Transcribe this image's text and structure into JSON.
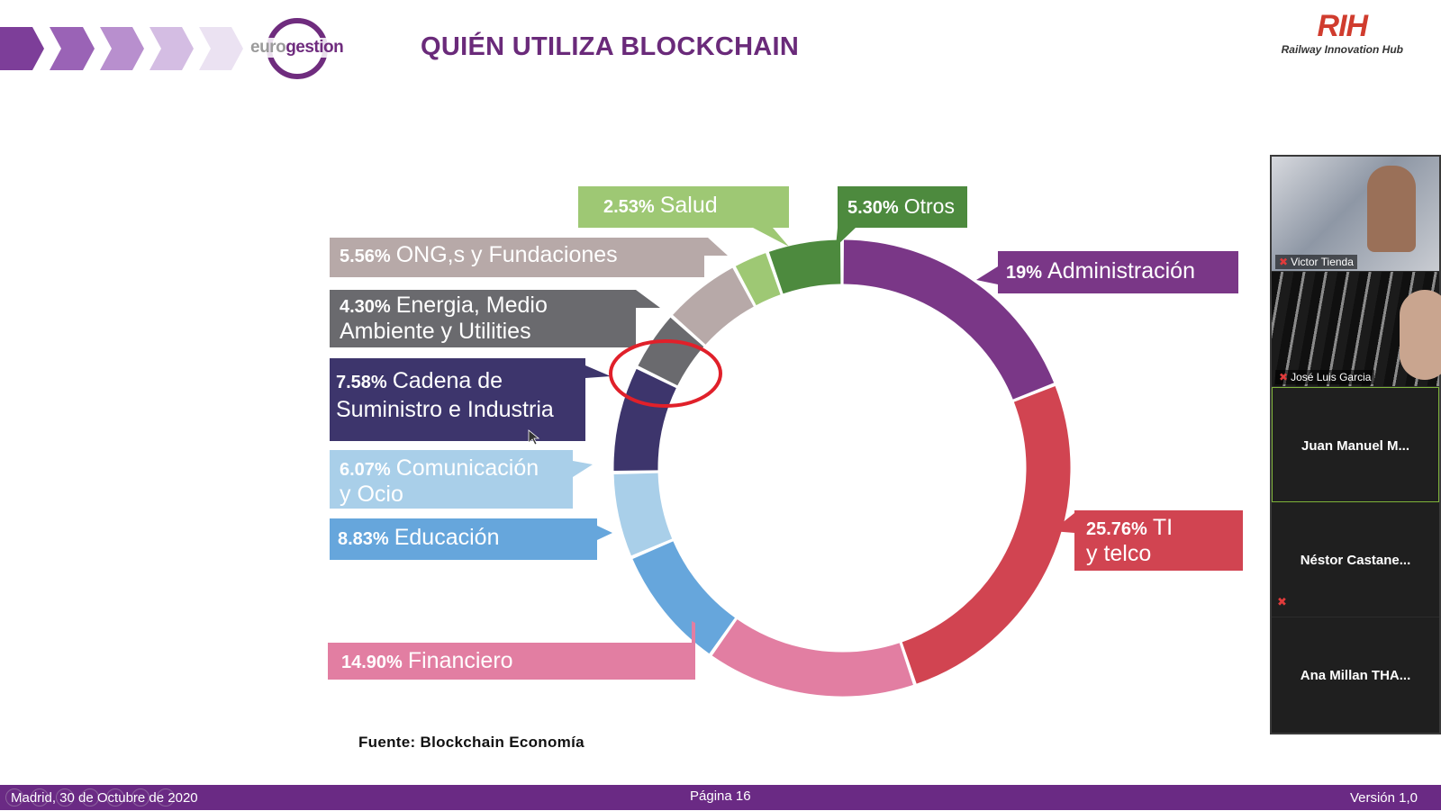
{
  "slide": {
    "title": "QUIÉN UTILIZA BLOCKCHAIN",
    "logo_left": {
      "part1": "euro",
      "part2": "gestion"
    },
    "logo_right": {
      "mark": "RIH",
      "subtitle": "Railway Innovation Hub"
    },
    "source": "Fuente: Blockchain Economía",
    "header_chevron_colors": [
      "#7d3e99",
      "#9a63b6",
      "#b88fce",
      "#d4bde3",
      "#ebe2f2"
    ]
  },
  "chart_data": {
    "type": "pie",
    "style": "donut",
    "slices": [
      {
        "pct": "19%",
        "value": 19.0,
        "name": "Administración",
        "color": "#7a3787"
      },
      {
        "pct": "25.76%",
        "value": 25.76,
        "name": "TI",
        "name2": "y telco",
        "color": "#d14451"
      },
      {
        "pct": "14.90%",
        "value": 14.9,
        "name": "Financiero",
        "color": "#e27ea2"
      },
      {
        "pct": "8.83%",
        "value": 8.83,
        "name": "Educación",
        "color": "#66a6dc"
      },
      {
        "pct": "6.07%",
        "value": 6.07,
        "name": "Comunicación",
        "name2": "y Ocio",
        "color": "#a9cfe9"
      },
      {
        "pct": "7.58%",
        "value": 7.58,
        "name": "Cadena de",
        "name2": "Suministro e Industria",
        "color": "#3d356c"
      },
      {
        "pct": "4.30%",
        "value": 4.3,
        "name": "Energia, Medio",
        "name2": "Ambiente y Utilities",
        "color": "#6a6a6e"
      },
      {
        "pct": "5.56%",
        "value": 5.56,
        "name": "ONG,s y Fundaciones",
        "color": "#b7a9a8"
      },
      {
        "pct": "2.53%",
        "value": 2.53,
        "name": "Salud",
        "color": "#9ec874"
      },
      {
        "pct": "5.30%",
        "value": 5.3,
        "name": "Otros",
        "color": "#4d8a3e"
      }
    ],
    "highlight_color": "#e0202a"
  },
  "participants": [
    {
      "name": "Victor Tienda",
      "muted": true
    },
    {
      "name": "José Luis Garcia",
      "muted": true
    },
    {
      "name": "Juan Manuel M...",
      "muted": false
    },
    {
      "name": "Néstor Castane...",
      "muted": true
    },
    {
      "name": "Ana Millan THA...",
      "muted": false
    }
  ],
  "footer": {
    "left": "Madrid,  30 de Octubre de 2020",
    "center": "Página 16",
    "right": "Versión 1,0"
  }
}
